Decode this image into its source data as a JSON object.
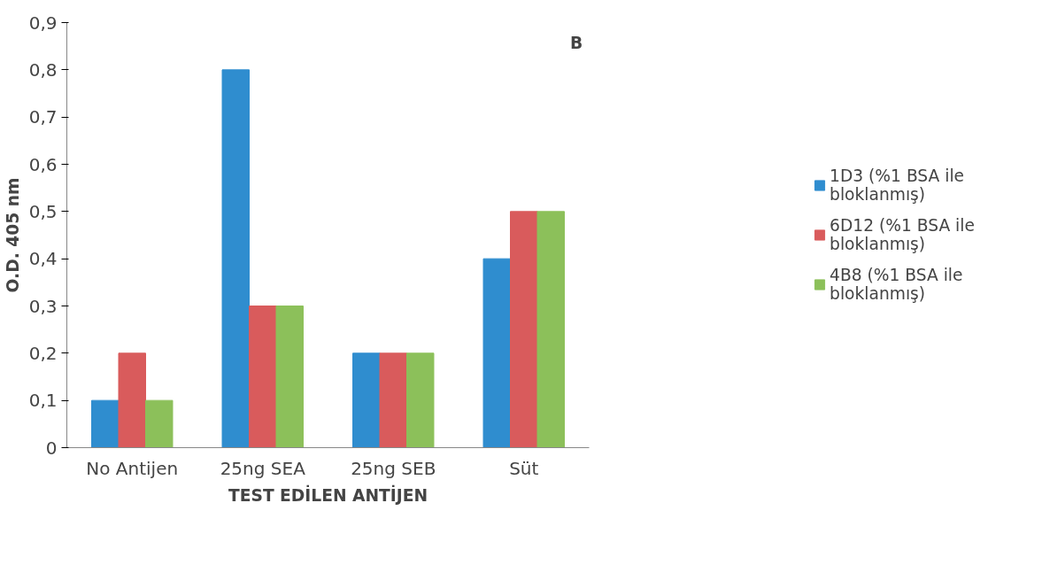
{
  "chart_data": {
    "type": "bar",
    "xlabel": "TEST EDİLEN ANTİJEN",
    "ylabel": "O.D. 405 nm",
    "categories": [
      "No Antijen",
      "25ng SEA",
      "25ng SEB",
      "Süt"
    ],
    "series": [
      {
        "name": "1D3 (%1 BSA ile bloklanmış)",
        "color": "#2f8dcf",
        "values": [
          0.1,
          0.8,
          0.2,
          0.4
        ]
      },
      {
        "name": "6D12 (%1 BSA ile bloklanmış)",
        "color": "#d95b5c",
        "values": [
          0.2,
          0.3,
          0.2,
          0.5
        ]
      },
      {
        "name": "4B8 (%1 BSA ile bloklanmış)",
        "color": "#8cc05a",
        "values": [
          0.1,
          0.3,
          0.2,
          0.5
        ]
      }
    ],
    "ylim": [
      0,
      0.9
    ],
    "yticks": [
      0,
      {
        "value": 0.1,
        "label": "0,1"
      },
      {
        "value": 0.2,
        "label": "0,2"
      },
      {
        "value": 0.3,
        "label": "0,3"
      },
      {
        "value": 0.4,
        "label": "0,4"
      },
      {
        "value": 0.5,
        "label": "0,5"
      },
      {
        "value": 0.6,
        "label": "0,6"
      },
      {
        "value": 0.7,
        "label": "0,7"
      },
      {
        "value": 0.8,
        "label": "0,8"
      },
      {
        "value": 0.9,
        "label": "0,9"
      }
    ],
    "annotations": [
      "B"
    ],
    "grid": false,
    "legend": "right"
  }
}
